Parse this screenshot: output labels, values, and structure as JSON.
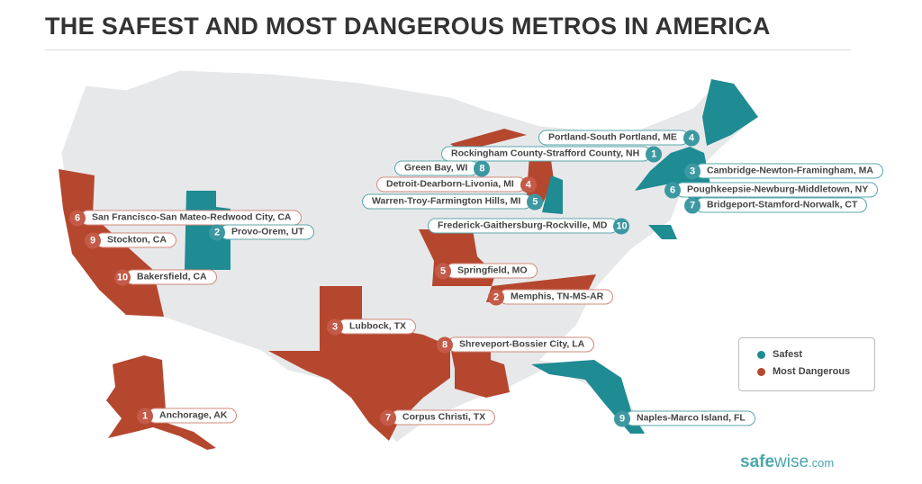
{
  "title": "THE SAFEST AND MOST DANGEROUS METROS IN AMERICA",
  "colors": {
    "safest": "#1f8b93",
    "most_dangerous": "#b5472f",
    "land": "#e7e8ea"
  },
  "legend": {
    "safest": "Safest",
    "most_dangerous": "Most Dangerous"
  },
  "logo": {
    "bold": "safe",
    "light": "wise",
    "tld": ".com"
  },
  "metros": [
    {
      "name": "Portland-South Portland, ME",
      "rank": "4",
      "category": "safest"
    },
    {
      "name": "Rockingham County-Strafford County, NH",
      "rank": "1",
      "category": "safest"
    },
    {
      "name": "Green Bay, WI",
      "rank": "8",
      "category": "safest"
    },
    {
      "name": "Detroit-Dearborn-Livonia, MI",
      "rank": "4",
      "category": "most_dangerous"
    },
    {
      "name": "Warren-Troy-Farmington Hills, MI",
      "rank": "5",
      "category": "safest"
    },
    {
      "name": "Cambridge-Newton-Framingham, MA",
      "rank": "3",
      "category": "safest"
    },
    {
      "name": "Poughkeepsie-Newburg-Middletown, NY",
      "rank": "6",
      "category": "safest"
    },
    {
      "name": "Bridgeport-Stamford-Norwalk, CT",
      "rank": "7",
      "category": "safest"
    },
    {
      "name": "Frederick-Gaithersburg-Rockville, MD",
      "rank": "10",
      "category": "safest"
    },
    {
      "name": "San Francisco-San Mateo-Redwood City, CA",
      "rank": "6",
      "category": "most_dangerous"
    },
    {
      "name": "Stockton, CA",
      "rank": "9",
      "category": "most_dangerous"
    },
    {
      "name": "Provo-Orem, UT",
      "rank": "2",
      "category": "safest"
    },
    {
      "name": "Bakersfield, CA",
      "rank": "10",
      "category": "most_dangerous"
    },
    {
      "name": "Springfield, MO",
      "rank": "5",
      "category": "most_dangerous"
    },
    {
      "name": "Memphis, TN-MS-AR",
      "rank": "2",
      "category": "most_dangerous"
    },
    {
      "name": "Lubbock, TX",
      "rank": "3",
      "category": "most_dangerous"
    },
    {
      "name": "Shreveport-Bossier City, LA",
      "rank": "8",
      "category": "most_dangerous"
    },
    {
      "name": "Anchorage, AK",
      "rank": "1",
      "category": "most_dangerous"
    },
    {
      "name": "Corpus Christi, TX",
      "rank": "7",
      "category": "most_dangerous"
    },
    {
      "name": "Naples-Marco Island, FL",
      "rank": "9",
      "category": "safest"
    }
  ]
}
